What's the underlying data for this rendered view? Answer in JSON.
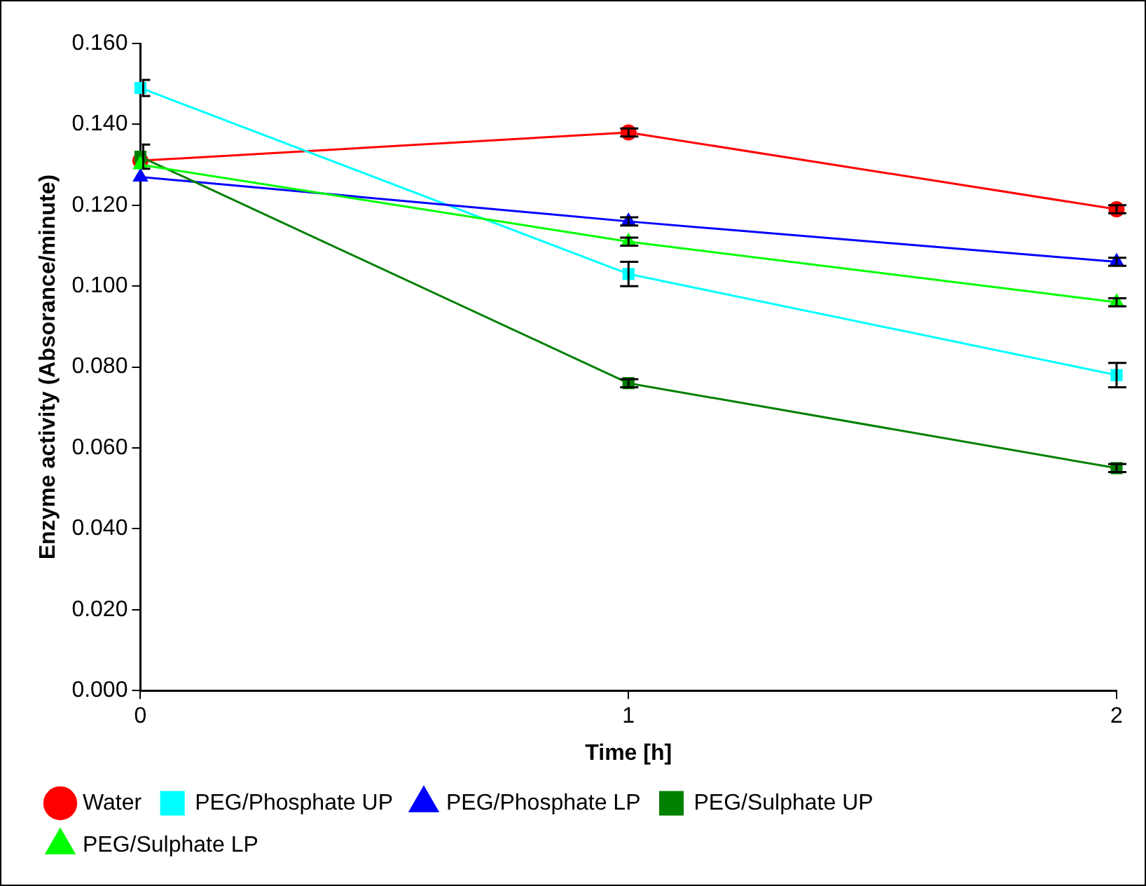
{
  "chart_data": {
    "type": "line",
    "xlabel": "Time [h]",
    "ylabel": "Enzyme activity (Absorance/minute)",
    "x": [
      0,
      1,
      2
    ],
    "xlim": [
      0,
      2
    ],
    "xticks": [
      0,
      1,
      2
    ],
    "ylim": [
      0,
      0.16
    ],
    "yticks": [
      {
        "value": 0,
        "label": "0.000"
      },
      {
        "value": 0.02,
        "label": "0.020"
      },
      {
        "value": 0.04,
        "label": "0.040"
      },
      {
        "value": 0.06,
        "label": "0.060"
      },
      {
        "value": 0.08,
        "label": "0.080"
      },
      {
        "value": 0.1,
        "label": "0.100"
      },
      {
        "value": 0.12,
        "label": "0.120"
      },
      {
        "value": 0.14,
        "label": "0.140"
      },
      {
        "value": 0.16,
        "label": "0.160"
      }
    ],
    "grid": false,
    "legend": "bottom",
    "line_style": "solid",
    "series": [
      {
        "name": "Water",
        "color": "#ff0000",
        "marker": "circle",
        "values": [
          0.131,
          0.138,
          0.119
        ],
        "errors": [
          null,
          0.001,
          0.001
        ]
      },
      {
        "name": "PEG/Phosphate UP",
        "color": "#00ffff",
        "marker": "square",
        "values": [
          0.149,
          0.103,
          0.078
        ],
        "errors": [
          0.002,
          0.003,
          0.003
        ]
      },
      {
        "name": "PEG/Phosphate LP",
        "color": "#0000ff",
        "marker": "triangle",
        "values": [
          0.127,
          0.116,
          0.106
        ],
        "errors": [
          null,
          0.001,
          0.001
        ]
      },
      {
        "name": "PEG/Sulphate UP",
        "color": "#008000",
        "marker": "square",
        "values": [
          0.132,
          0.076,
          0.055
        ],
        "errors": [
          0.003,
          0.001,
          0.001
        ]
      },
      {
        "name": "PEG/Sulphate LP",
        "color": "#00ff00",
        "marker": "triangle",
        "values": [
          0.13,
          0.111,
          0.096
        ],
        "errors": [
          null,
          0.001,
          0.001
        ]
      }
    ]
  }
}
